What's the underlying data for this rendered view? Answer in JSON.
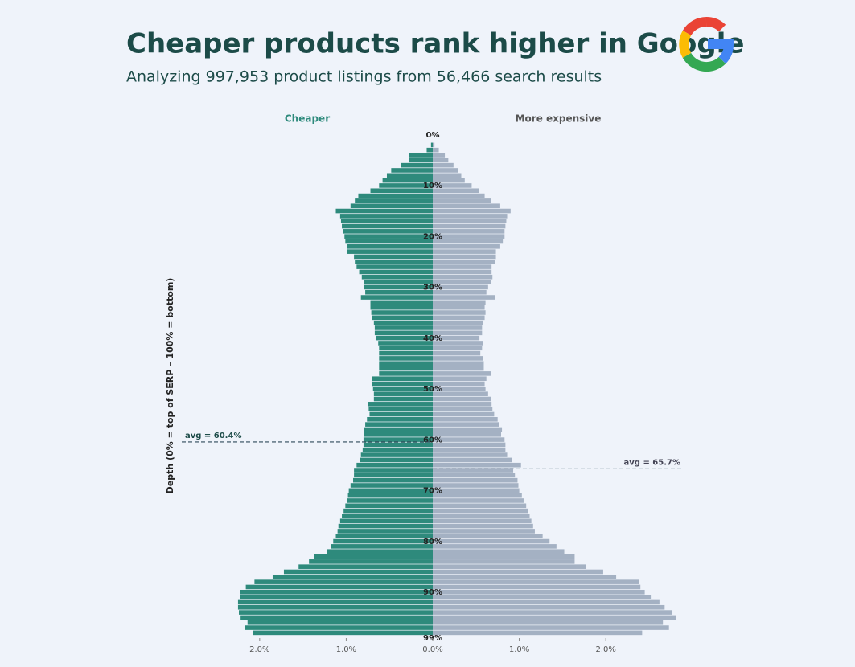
{
  "chart_data": {
    "type": "butterfly",
    "title": "Cheaper products rank higher in Google",
    "subtitle": "Analyzing 997,953 product listings from  56,466 search results",
    "y_label": "Depth (0% = top of SERP – 100% = bottom)",
    "ylim": [
      0,
      99
    ],
    "yticks": [
      {
        "value": 0,
        "label": "0%"
      },
      {
        "value": 10,
        "label": "10%"
      },
      {
        "value": 20,
        "label": "20%"
      },
      {
        "value": 30,
        "label": "30%"
      },
      {
        "value": 40,
        "label": "40%"
      },
      {
        "value": 50,
        "label": "50%"
      },
      {
        "value": 60,
        "label": "60%"
      },
      {
        "value": 70,
        "label": "70%"
      },
      {
        "value": 80,
        "label": "80%"
      },
      {
        "value": 90,
        "label": "90%"
      },
      {
        "value": 99,
        "label": "99%"
      }
    ],
    "xlim": [
      -2.9,
      2.9
    ],
    "xticks": [
      {
        "value": -2,
        "label": "2.0%"
      },
      {
        "value": -1,
        "label": "1.0%"
      },
      {
        "value": 0,
        "label": "0.0%"
      },
      {
        "value": 1,
        "label": "1.0%"
      },
      {
        "value": 2,
        "label": "2.0%"
      }
    ],
    "series": [
      {
        "name": "Cheaper",
        "color": "#2e8a7c",
        "side": "left",
        "values": [
          0,
          0,
          0.02,
          0.07,
          0.27,
          0.27,
          0.37,
          0.48,
          0.53,
          0.58,
          0.62,
          0.72,
          0.86,
          0.9,
          0.95,
          1.12,
          1.07,
          1.06,
          1.05,
          1.04,
          1.02,
          1.01,
          0.99,
          0.99,
          0.91,
          0.9,
          0.88,
          0.85,
          0.82,
          0.79,
          0.79,
          0.78,
          0.83,
          0.72,
          0.72,
          0.71,
          0.7,
          0.68,
          0.67,
          0.67,
          0.66,
          0.63,
          0.62,
          0.62,
          0.62,
          0.62,
          0.62,
          0.62,
          0.7,
          0.7,
          0.69,
          0.68,
          0.68,
          0.75,
          0.74,
          0.73,
          0.76,
          0.78,
          0.79,
          0.79,
          0.8,
          0.8,
          0.81,
          0.83,
          0.84,
          0.88,
          0.91,
          0.91,
          0.92,
          0.95,
          0.97,
          0.98,
          0.99,
          1.01,
          1.03,
          1.05,
          1.07,
          1.09,
          1.1,
          1.12,
          1.15,
          1.18,
          1.22,
          1.37,
          1.43,
          1.55,
          1.72,
          1.85,
          2.06,
          2.16,
          2.23,
          2.23,
          2.25,
          2.25,
          2.24,
          2.22,
          2.14,
          2.17,
          2.08
        ]
      },
      {
        "name": "More expensive",
        "color": "#a4b1c3",
        "side": "right",
        "values": [
          0,
          0,
          0.02,
          0.07,
          0.14,
          0.18,
          0.24,
          0.29,
          0.33,
          0.37,
          0.45,
          0.53,
          0.6,
          0.67,
          0.78,
          0.9,
          0.86,
          0.85,
          0.84,
          0.83,
          0.83,
          0.81,
          0.78,
          0.73,
          0.73,
          0.72,
          0.68,
          0.68,
          0.69,
          0.67,
          0.64,
          0.62,
          0.72,
          0.61,
          0.6,
          0.61,
          0.6,
          0.58,
          0.57,
          0.57,
          0.54,
          0.58,
          0.57,
          0.55,
          0.58,
          0.59,
          0.59,
          0.67,
          0.62,
          0.6,
          0.61,
          0.64,
          0.67,
          0.68,
          0.69,
          0.71,
          0.75,
          0.77,
          0.8,
          0.79,
          0.83,
          0.84,
          0.84,
          0.86,
          0.92,
          1.02,
          0.93,
          0.95,
          0.98,
          0.99,
          1.0,
          1.03,
          1.05,
          1.08,
          1.1,
          1.12,
          1.14,
          1.16,
          1.18,
          1.27,
          1.35,
          1.43,
          1.52,
          1.64,
          1.64,
          1.77,
          1.97,
          2.12,
          2.38,
          2.4,
          2.45,
          2.52,
          2.62,
          2.68,
          2.77,
          2.81,
          2.66,
          2.73,
          2.42
        ]
      }
    ],
    "averages": [
      {
        "value": 60.4,
        "label": "avg = 60.4%"
      },
      {
        "value": 65.7,
        "label": "avg = 65.7%"
      }
    ]
  }
}
